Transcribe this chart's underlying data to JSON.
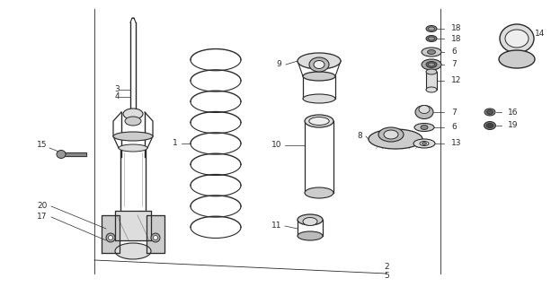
{
  "bg_color": "#ffffff",
  "line_color": "#2a2a2a",
  "figsize": [
    6.13,
    3.2
  ],
  "dpi": 100,
  "xlim": [
    0,
    613
  ],
  "ylim": [
    0,
    320
  ]
}
